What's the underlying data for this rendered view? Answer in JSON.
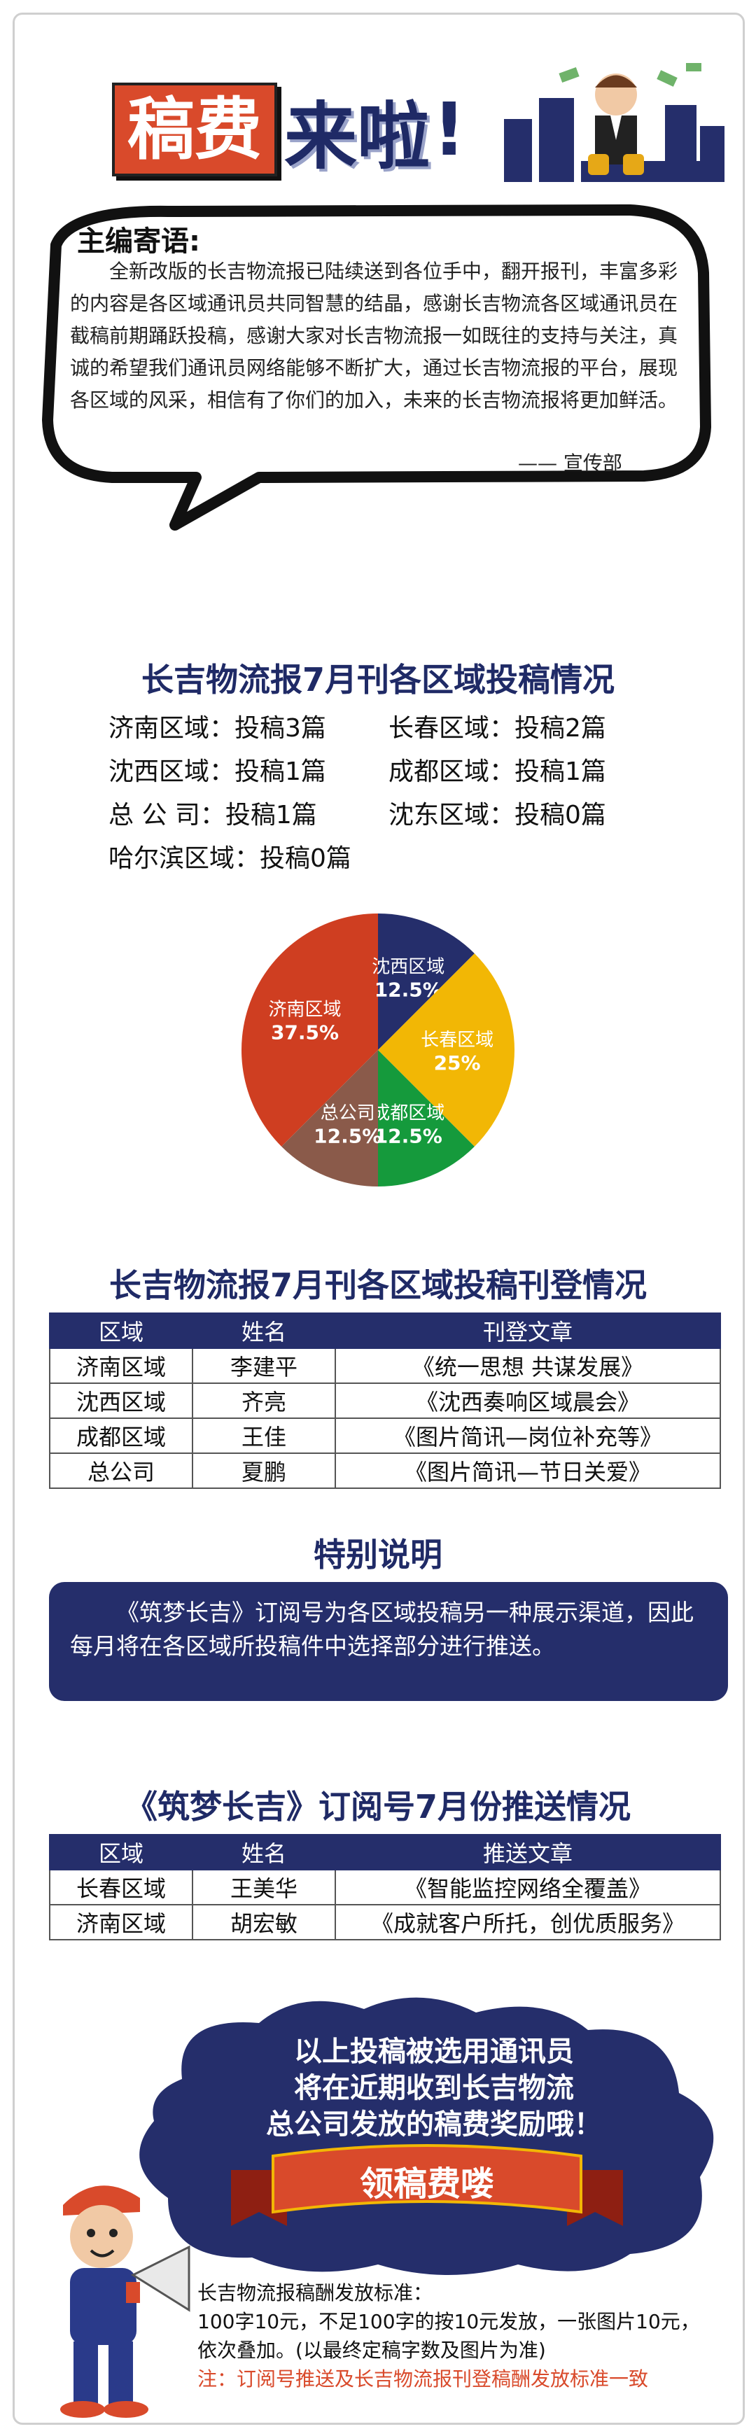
{
  "header": {
    "title_red": "稿费",
    "title_blue": "来啦",
    "title_bang": "!"
  },
  "editor_note": {
    "title": "主编寄语:",
    "body": "全新改版的长吉物流报已陆续送到各位手中，翻开报刊，丰富多彩的内容是各区域通讯员共同智慧的结晶，感谢长吉物流各区域通讯员在截稿前期踊跃投稿，感谢大家对长吉物流报一如既往的支持与关注，真诚的希望我们通讯员网络能够不断扩大，通过长吉物流报的平台，展现各区域的风采，相信有了你们的加入，未来的长吉物流报将更加鲜活。",
    "signature": "—— 宣传部"
  },
  "submission": {
    "title": "长吉物流报7月刊各区域投稿情况",
    "rows": [
      [
        "济南区域：投稿3篇",
        "长春区域：投稿2篇"
      ],
      [
        "沈西区域：投稿1篇",
        "成都区域：投稿1篇"
      ],
      [
        "总 公 司：投稿1篇",
        "沈东区域：投稿0篇"
      ],
      [
        "哈尔滨区域：投稿0篇"
      ]
    ]
  },
  "chart_data": {
    "type": "pie",
    "title": "",
    "slices": [
      {
        "label": "济南区域",
        "value": 37.5,
        "display": "37.5%",
        "color": "#cf3e21"
      },
      {
        "label": "沈西区域",
        "value": 12.5,
        "display": "12.5%",
        "color": "#252e6b"
      },
      {
        "label": "长春区域",
        "value": 25,
        "display": "25%",
        "color": "#f2b705"
      },
      {
        "label": "成都区域",
        "value": 12.5,
        "display": "12.5%",
        "color": "#159a3c"
      },
      {
        "label": "总公司",
        "value": 12.5,
        "display": "12.5%",
        "color": "#8a5a4a"
      }
    ]
  },
  "published": {
    "title": "长吉物流报7月刊各区域投稿刊登情况",
    "headers": [
      "区域",
      "姓名",
      "刊登文章"
    ],
    "rows": [
      [
        "济南区域",
        "李建平",
        "《统一思想 共谋发展》"
      ],
      [
        "沈西区域",
        "齐亮",
        "《沈西奏响区域晨会》"
      ],
      [
        "成都区域",
        "王佳",
        "《图片简讯—岗位补充等》"
      ],
      [
        "总公司",
        "夏鹏",
        "《图片简讯—节日关爱》"
      ]
    ]
  },
  "special": {
    "title": "特别说明",
    "body": "《筑梦长吉》订阅号为各区域投稿另一种展示渠道，因此每月将在各区域所投稿件中选择部分进行推送。"
  },
  "push": {
    "title": "《筑梦长吉》订阅号7月份推送情况",
    "headers": [
      "区域",
      "姓名",
      "推送文章"
    ],
    "rows": [
      [
        "长春区域",
        "王美华",
        "《智能监控网络全覆盖》"
      ],
      [
        "济南区域",
        "胡宏敏",
        "《成就客户所托，创优质服务》"
      ]
    ]
  },
  "reward": {
    "lines": [
      "以上投稿被选用通讯员",
      "将在近期收到长吉物流",
      "总公司发放的稿费奖励哦！"
    ],
    "ribbon": "领稿费喽"
  },
  "standard": {
    "lines": [
      "长吉物流报稿酬发放标准：",
      "100字10元，不足100字的按10元发放，一张图片10元，",
      "依次叠加。(以最终定稿字数及图片为准)"
    ],
    "note": "注：订阅号推送及长吉物流报刊登稿酬发放标准一致"
  },
  "colors": {
    "navy": "#252e6b",
    "red": "#d94a2b",
    "yellow": "#f2b705",
    "green": "#159a3c"
  }
}
